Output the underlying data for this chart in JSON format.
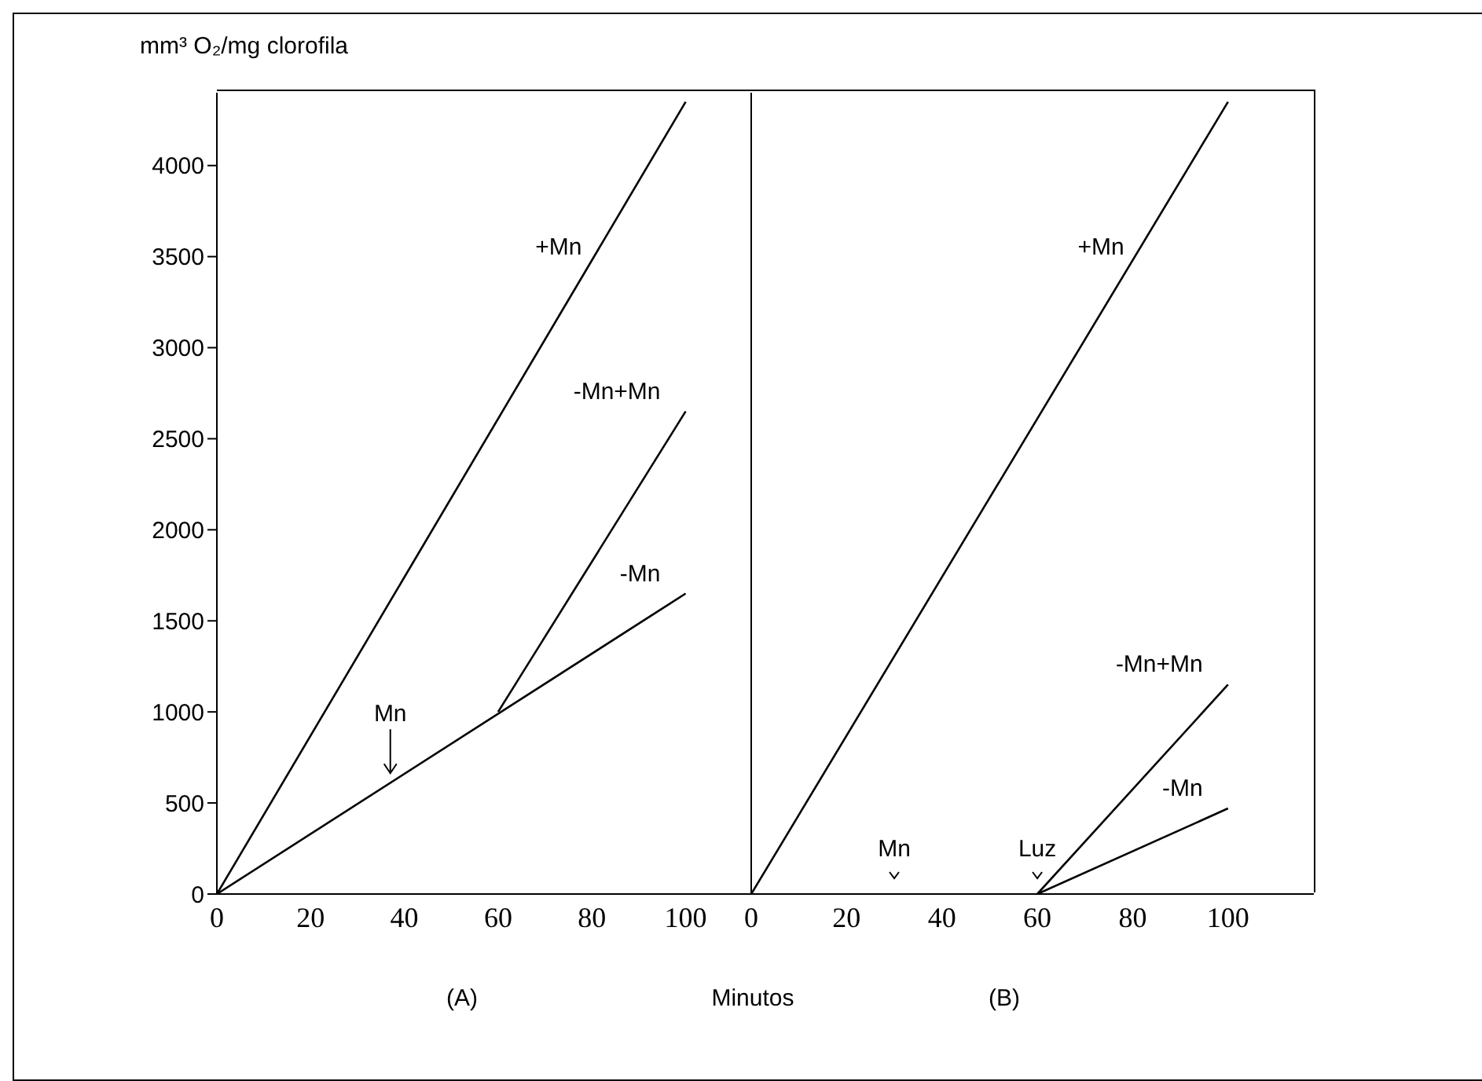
{
  "chart_data": [
    {
      "type": "line",
      "ylabel": "mm³ O₂/mg clorofila",
      "xlabel": "Minutos",
      "xlim": [
        0,
        116
      ],
      "xticks": [
        0,
        20,
        40,
        60,
        80,
        100
      ],
      "ylim": [
        0,
        4400
      ],
      "yticks": [
        0,
        500,
        1000,
        1500,
        2000,
        2500,
        3000,
        3500,
        4000
      ],
      "marker": "none",
      "line_style": "solid",
      "series": [
        {
          "name": "+Mn",
          "color": "#000000",
          "x": [
            0,
            100
          ],
          "values": [
            0,
            4350
          ]
        },
        {
          "name": "-Mn+Mn",
          "color": "#000000",
          "x": [
            60,
            100
          ],
          "values": [
            1000,
            2650
          ]
        },
        {
          "name": "-Mn",
          "color": "#000000",
          "x": [
            0,
            100
          ],
          "values": [
            0,
            1650
          ]
        }
      ],
      "annotations": [
        {
          "text": "Mn",
          "x": 37,
          "y": 620
        },
        "(A)"
      ]
    },
    {
      "type": "line",
      "xlim": [
        0,
        118
      ],
      "xticks": [
        0,
        20,
        40,
        60,
        80,
        100
      ],
      "ylim": [
        0,
        4400
      ],
      "tick_labels": "x",
      "marker": "none",
      "line_style": "solid",
      "series": [
        {
          "name": "+Mn",
          "color": "#000000",
          "x": [
            0,
            100
          ],
          "values": [
            0,
            4350
          ]
        },
        {
          "name": "-Mn+Mn",
          "color": "#000000",
          "x": [
            60,
            100
          ],
          "values": [
            0,
            1150
          ]
        },
        {
          "name": "-Mn",
          "color": "#000000",
          "x": [
            60,
            100
          ],
          "values": [
            0,
            470
          ]
        }
      ],
      "annotations": [
        "Mn",
        {
          "text": "Luz",
          "x": 60,
          "y": 0
        },
        "(B)"
      ]
    }
  ]
}
